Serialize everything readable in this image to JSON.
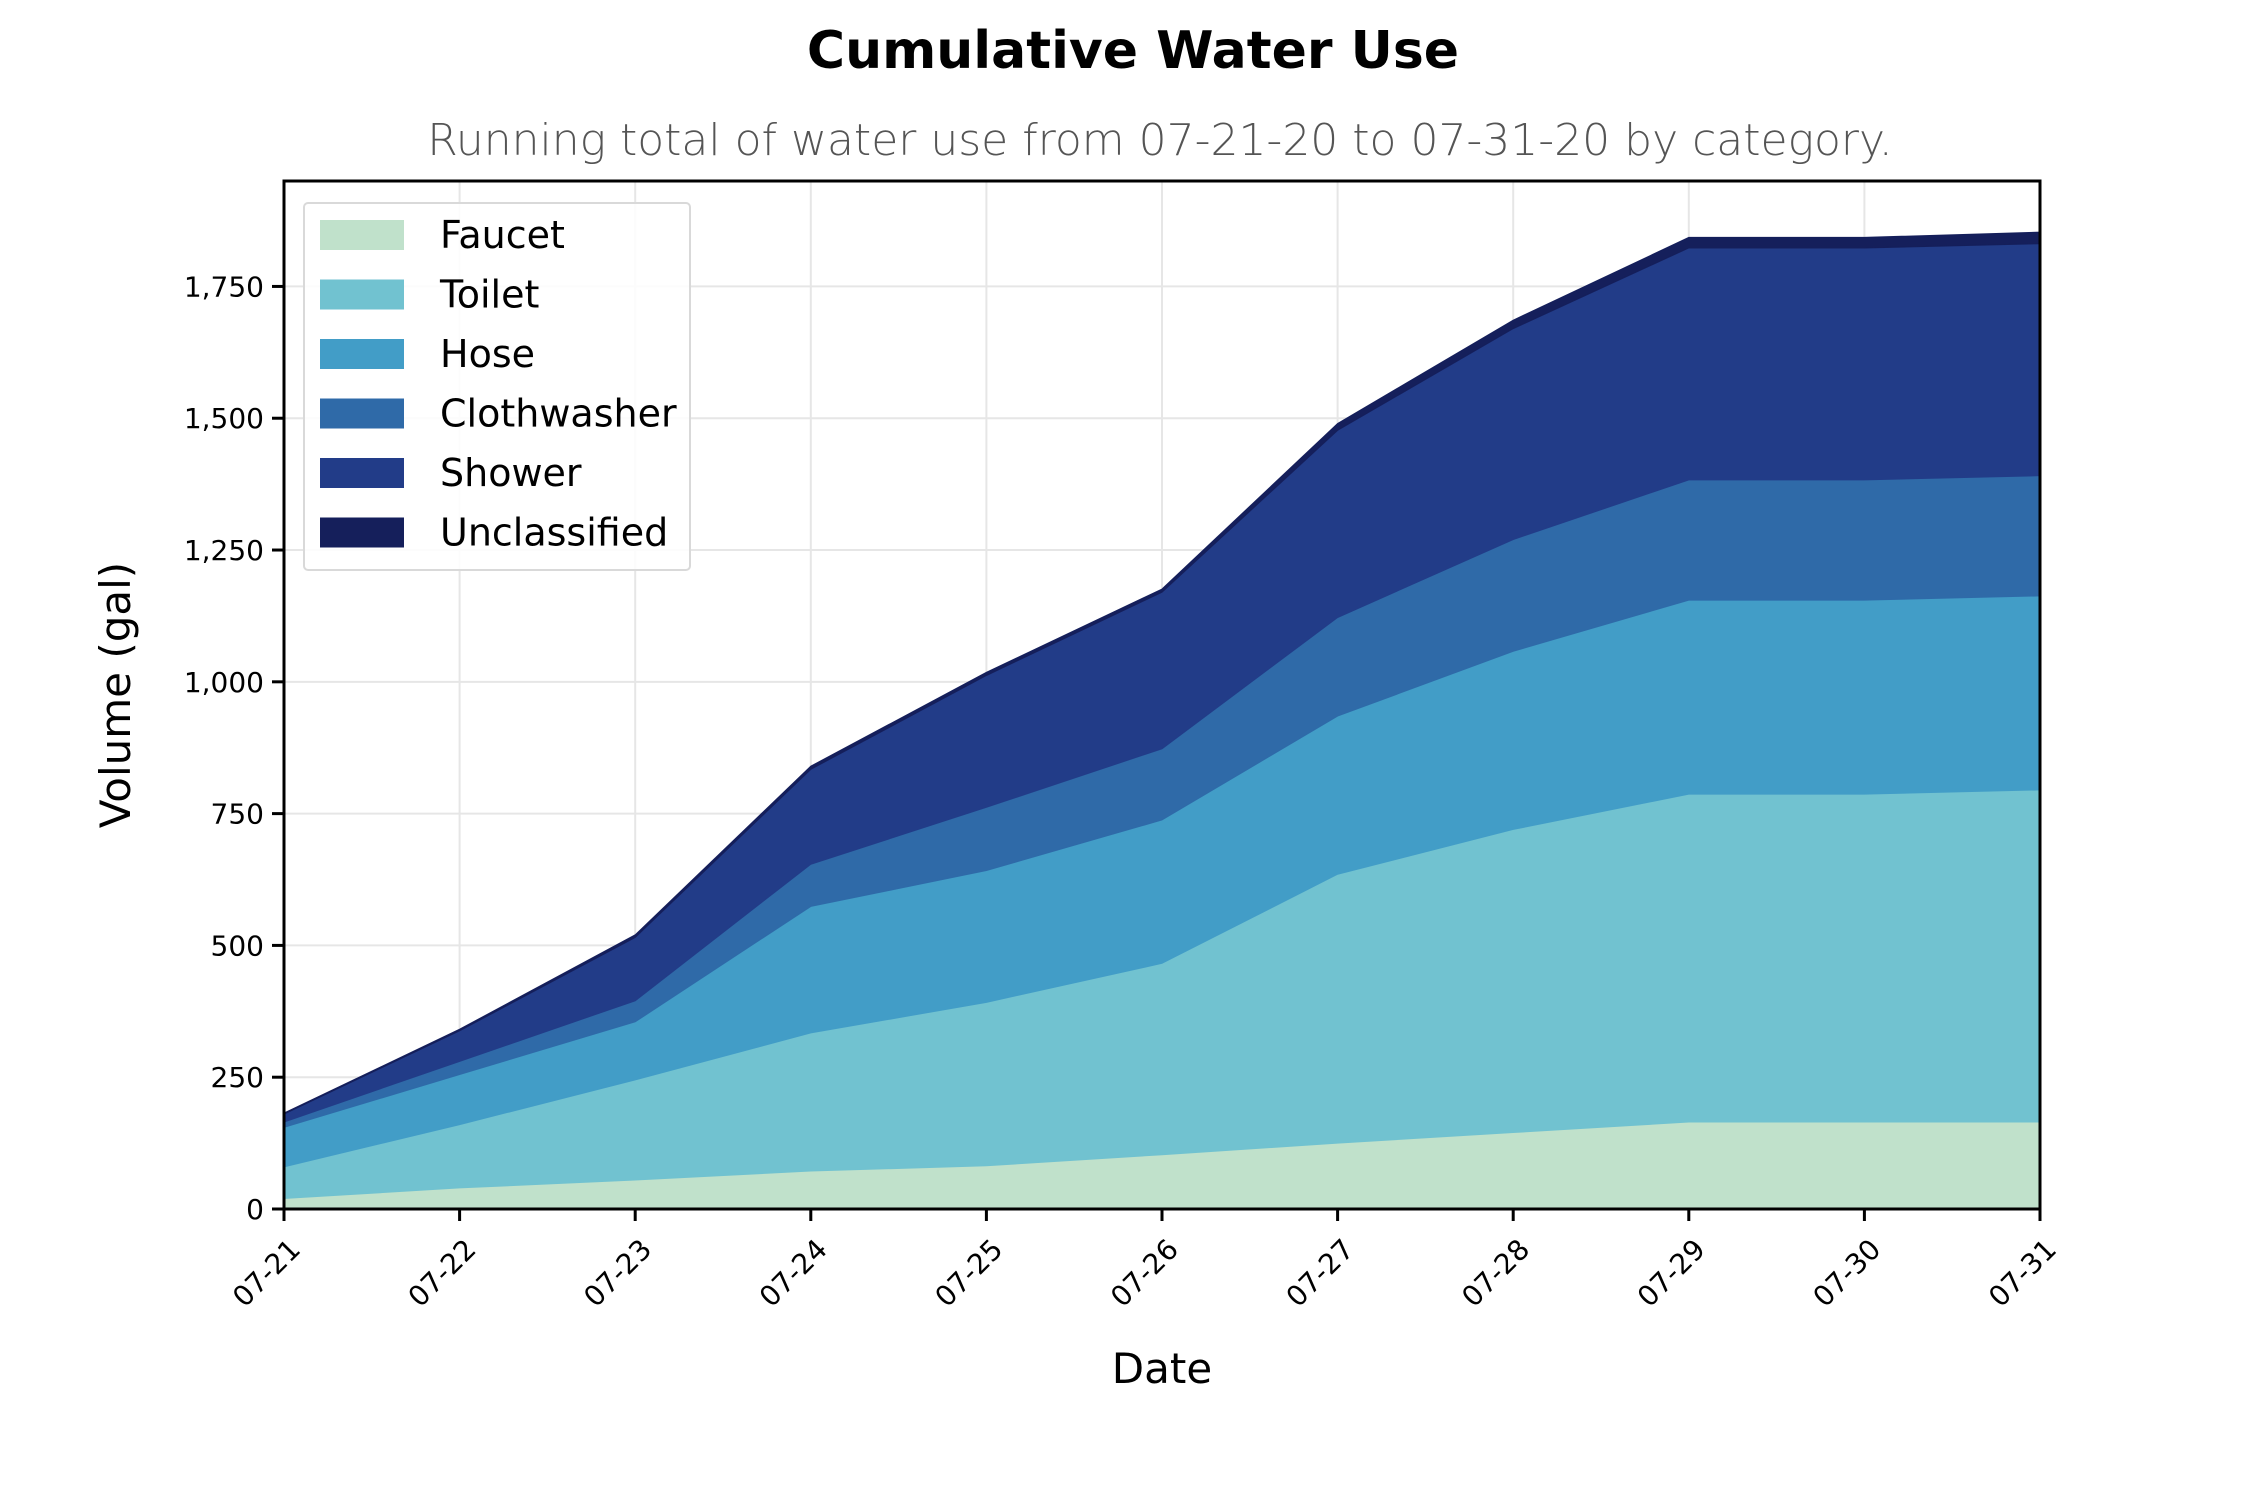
{
  "chart_data": {
    "type": "area",
    "stacked": true,
    "title": "Cumulative Water Use",
    "subtitle": "Running total of water use from 07-21-20 to 07-31-20 by category.",
    "xlabel": "Date",
    "ylabel": "Volume (gal)",
    "categories": [
      "07-21",
      "07-22",
      "07-23",
      "07-24",
      "07-25",
      "07-26",
      "07-27",
      "07-28",
      "07-29",
      "07-30",
      "07-31"
    ],
    "ylim": [
      0,
      1950
    ],
    "yticks": [
      0,
      250,
      500,
      750,
      1000,
      1250,
      1500,
      1750
    ],
    "ytick_labels": [
      "0",
      "250",
      "500",
      "750",
      "1,000",
      "1,250",
      "1,500",
      "1,750"
    ],
    "grid": true,
    "legend_position": "top-left",
    "series": [
      {
        "name": "Faucet",
        "color": "#c0e1cb",
        "values": [
          20,
          40,
          55,
          72,
          82,
          103,
          125,
          145,
          165,
          165,
          165
        ]
      },
      {
        "name": "Toilet",
        "color": "#71c2d0",
        "values": [
          60,
          120,
          190,
          262,
          310,
          363,
          510,
          575,
          622,
          622,
          630
        ]
      },
      {
        "name": "Hose",
        "color": "#429dc7",
        "values": [
          75,
          95,
          110,
          240,
          250,
          272,
          300,
          338,
          368,
          368,
          368
        ]
      },
      {
        "name": "Clothwasher",
        "color": "#2f6aa8",
        "values": [
          10,
          25,
          40,
          80,
          120,
          135,
          187,
          212,
          228,
          228,
          228
        ]
      },
      {
        "name": "Shower",
        "color": "#223c88",
        "values": [
          15,
          58,
          120,
          180,
          250,
          297,
          355,
          400,
          440,
          440,
          440
        ]
      },
      {
        "name": "Unclassified",
        "color": "#151f5b",
        "values": [
          2,
          3,
          5,
          6,
          6,
          6,
          13,
          16,
          20,
          20,
          22
        ]
      }
    ]
  }
}
